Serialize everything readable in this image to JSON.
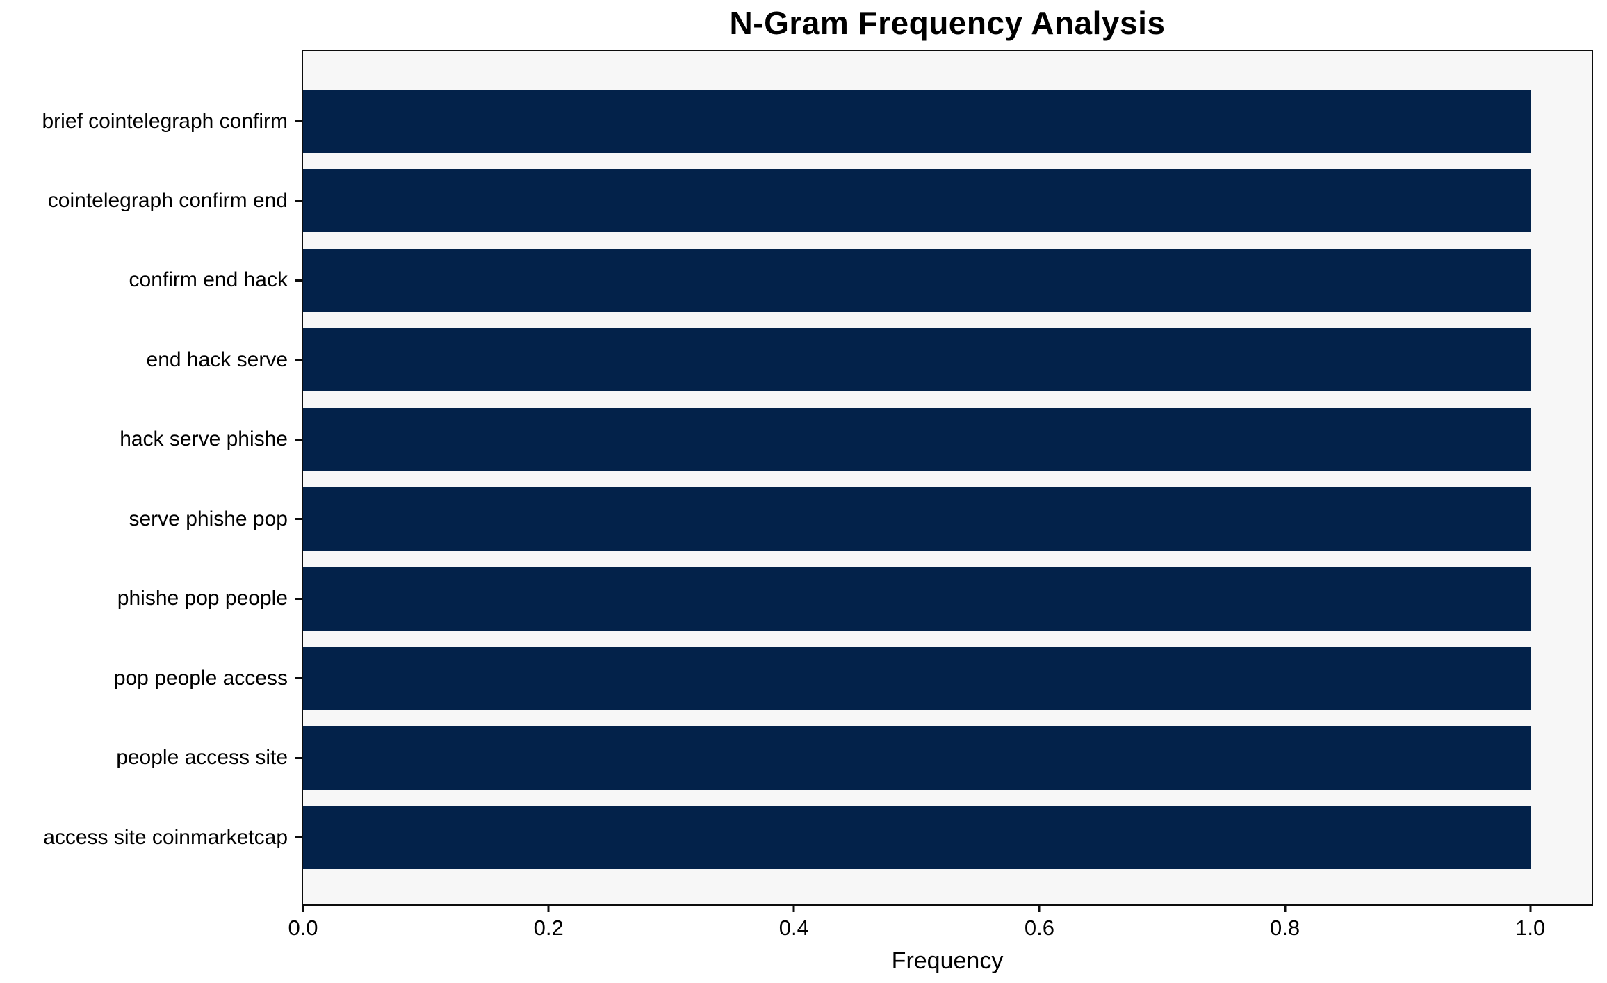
{
  "chart_data": {
    "type": "bar",
    "orientation": "horizontal",
    "title": "N-Gram Frequency Analysis",
    "xlabel": "Frequency",
    "ylabel": "",
    "categories": [
      "brief cointelegraph confirm",
      "cointelegraph confirm end",
      "confirm end hack",
      "end hack serve",
      "hack serve phishe",
      "serve phishe pop",
      "phishe pop people",
      "pop people access",
      "people access site",
      "access site coinmarketcap"
    ],
    "values": [
      1.0,
      1.0,
      1.0,
      1.0,
      1.0,
      1.0,
      1.0,
      1.0,
      1.0,
      1.0
    ],
    "xlim": [
      0,
      1.05
    ],
    "xticks": [
      0.0,
      0.2,
      0.4,
      0.6,
      0.8,
      1.0
    ],
    "xtick_labels": [
      "0.0",
      "0.2",
      "0.4",
      "0.6",
      "0.8",
      "1.0"
    ],
    "grid": false,
    "legend": "none",
    "colors": {
      "bar": "#03224a",
      "plot_background": "#f7f7f7",
      "figure_background": "#ffffff",
      "spine": "#0d0d0d",
      "tick": "#0d0d0d",
      "text": "#000000"
    }
  }
}
